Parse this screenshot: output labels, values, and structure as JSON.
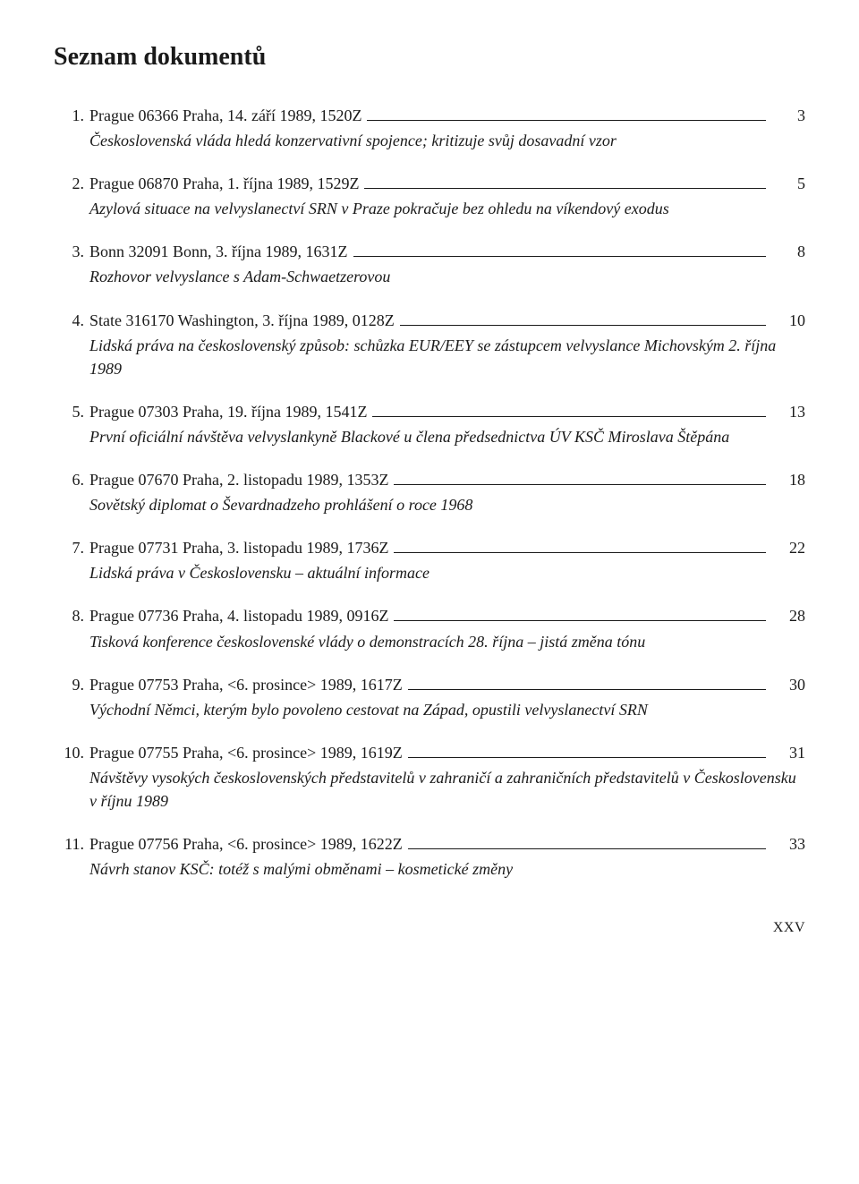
{
  "page": {
    "heading": "Seznam dokumentů",
    "footer": "XXV"
  },
  "entries": [
    {
      "num": "1.",
      "title": "Prague 06366    Praha, 14. září 1989, 1520Z",
      "page": "3",
      "desc": "Československá vláda hledá konzervativní spojence; kritizuje svůj dosavadní vzor"
    },
    {
      "num": "2.",
      "title": "Prague 06870    Praha, 1. října 1989, 1529Z",
      "page": "5",
      "desc": "Azylová situace na velvyslanectví SRN v Praze pokračuje bez ohledu na víkendový exodus"
    },
    {
      "num": "3.",
      "title": "Bonn 32091    Bonn, 3. října 1989, 1631Z",
      "page": "8",
      "desc": "Rozhovor velvyslance s Adam-Schwaetzerovou"
    },
    {
      "num": "4.",
      "title": "State 316170    Washington, 3. října 1989, 0128Z",
      "page": "10",
      "desc": "Lidská práva na československý způsob: schůzka EUR/EEY se zástupcem velvyslance Michovským 2. října 1989"
    },
    {
      "num": "5.",
      "title": "Prague 07303    Praha, 19. října 1989, 1541Z",
      "page": "13",
      "desc": "První oficiální návštěva velvyslankyně Blackové u člena předsednictva ÚV KSČ Miroslava Štěpána"
    },
    {
      "num": "6.",
      "title": "Prague 07670    Praha, 2. listopadu 1989, 1353Z",
      "page": "18",
      "desc": "Sovětský diplomat o Ševardnadzeho prohlášení o roce 1968"
    },
    {
      "num": "7.",
      "title": "Prague 07731    Praha, 3. listopadu 1989, 1736Z",
      "page": "22",
      "desc": "Lidská práva v Československu – aktuální informace"
    },
    {
      "num": "8.",
      "title": "Prague 07736    Praha, 4. listopadu 1989, 0916Z",
      "page": "28",
      "desc": "Tisková konference československé vlády o demonstracích 28. října – jistá změna tónu"
    },
    {
      "num": "9.",
      "title": "Prague 07753    Praha, <6. prosince> 1989, 1617Z",
      "page": "30",
      "desc": "Východní Němci, kterým bylo povoleno cestovat na Západ, opustili velvyslanectví SRN"
    },
    {
      "num": "10.",
      "title": "Prague 07755    Praha, <6. prosince> 1989, 1619Z",
      "page": "31",
      "desc": "Návštěvy vysokých československých představitelů v zahraničí a zahraničních představitelů v Československu v říjnu 1989"
    },
    {
      "num": "11.",
      "title": "Prague 07756    Praha, <6. prosince> 1989, 1622Z",
      "page": "33",
      "desc": "Návrh stanov KSČ: totéž s malými obměnami – kosmetické změny"
    }
  ]
}
